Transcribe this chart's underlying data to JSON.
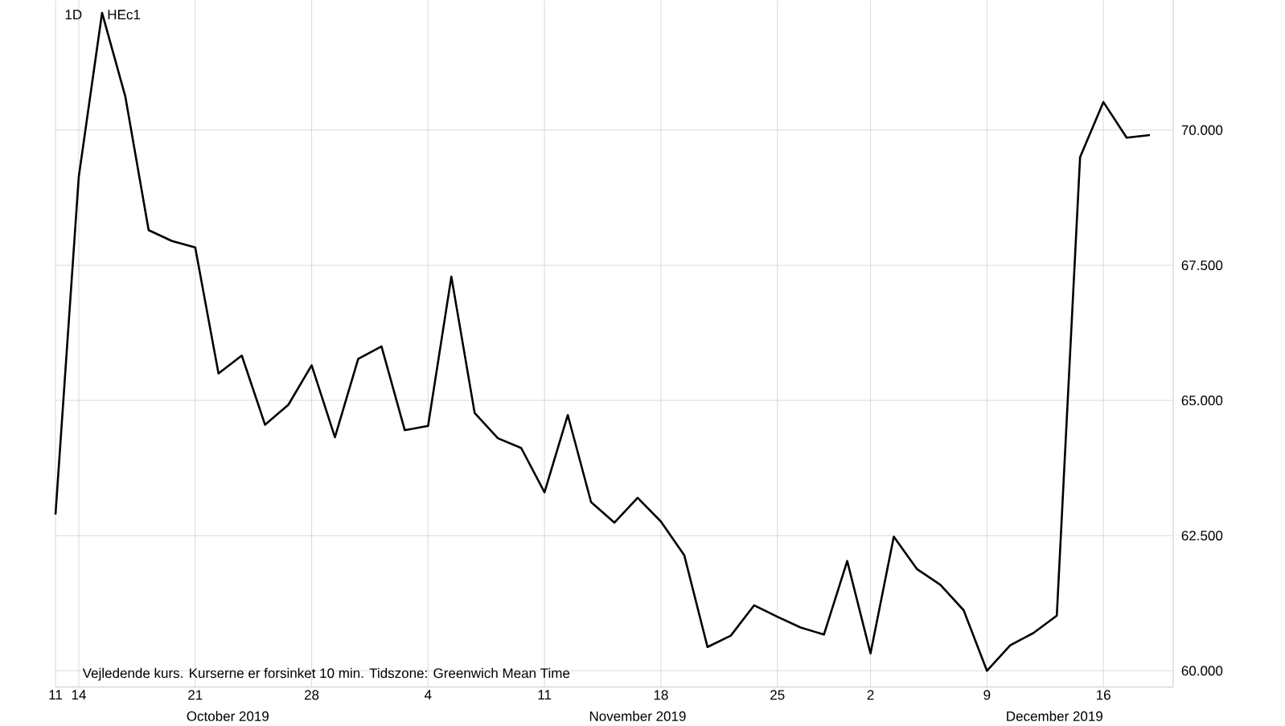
{
  "chart_data": {
    "type": "line",
    "title": "HEc1",
    "subtitle": "1D",
    "categories": [
      "11",
      "14",
      null,
      null,
      null,
      null,
      "21",
      null,
      null,
      null,
      null,
      "28",
      null,
      null,
      null,
      null,
      "4",
      null,
      null,
      null,
      null,
      "11",
      null,
      null,
      null,
      null,
      "18",
      null,
      null,
      null,
      null,
      "25",
      null,
      null,
      null,
      "2",
      null,
      null,
      null,
      null,
      "9",
      null,
      null,
      null,
      null,
      "16",
      null,
      null
    ],
    "values": [
      62.89,
      69.14,
      72.17,
      70.62,
      68.15,
      67.95,
      67.83,
      65.5,
      65.83,
      64.55,
      64.92,
      65.65,
      64.32,
      65.77,
      66.0,
      64.45,
      64.53,
      67.29,
      64.77,
      64.3,
      64.12,
      63.3,
      64.73,
      63.12,
      62.74,
      63.2,
      62.76,
      62.14,
      60.44,
      60.65,
      61.21,
      61.0,
      60.8,
      60.67,
      62.03,
      60.32,
      62.48,
      61.88,
      61.59,
      61.12,
      60.0,
      60.47,
      60.7,
      61.02,
      69.5,
      70.52,
      69.86,
      69.91
    ],
    "color": "#000000",
    "marker": "none",
    "line_style": "solid",
    "grid": true,
    "ylim": [
      59.7,
      72.4
    ],
    "yticks": [
      {
        "value": 60,
        "label": "60.000"
      },
      {
        "value": 62.5,
        "label": "62.500"
      },
      {
        "value": 65,
        "label": "65.000"
      },
      {
        "value": 67.5,
        "label": "67.500"
      },
      {
        "value": 70,
        "label": "70.000"
      }
    ],
    "annotations": [
      "October 2019",
      "November 2019",
      "December 2019",
      "Vejledende kurs. Kurserne er forsinket 10 min.    Tidszone: Greenwich Mean Time"
    ]
  }
}
